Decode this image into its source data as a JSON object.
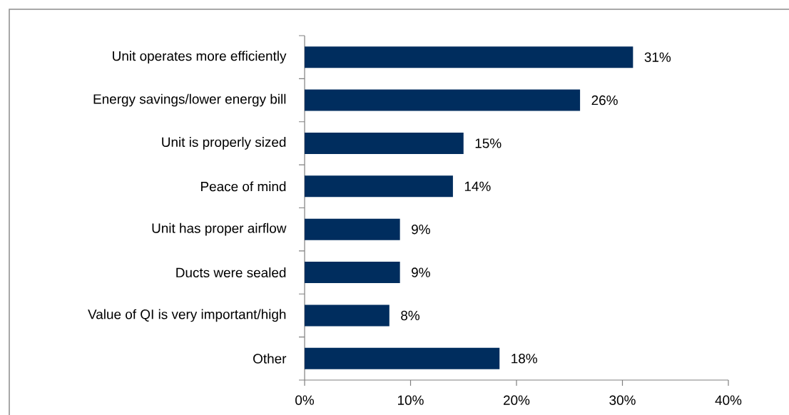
{
  "chart_data": {
    "type": "bar",
    "orientation": "horizontal",
    "categories": [
      "Unit operates more efficiently",
      "Energy savings/lower energy bill",
      "Unit is properly sized",
      "Peace of mind",
      "Unit has proper airflow",
      "Ducts were sealed",
      "Value of QI is very important/high",
      "Other"
    ],
    "values": [
      31,
      26,
      15,
      14,
      9,
      9,
      8,
      18.4
    ],
    "value_labels": [
      "31%",
      "26%",
      "15%",
      "14%",
      "9%",
      "9%",
      "8%",
      "18%"
    ],
    "color": "#002d5e",
    "xlim": [
      0,
      40
    ],
    "xticks": [
      {
        "value": 0,
        "label": "0%"
      },
      {
        "value": 10,
        "label": "10%"
      },
      {
        "value": 20,
        "label": "20%"
      },
      {
        "value": 30,
        "label": "30%"
      },
      {
        "value": 40,
        "label": "40%"
      }
    ]
  }
}
